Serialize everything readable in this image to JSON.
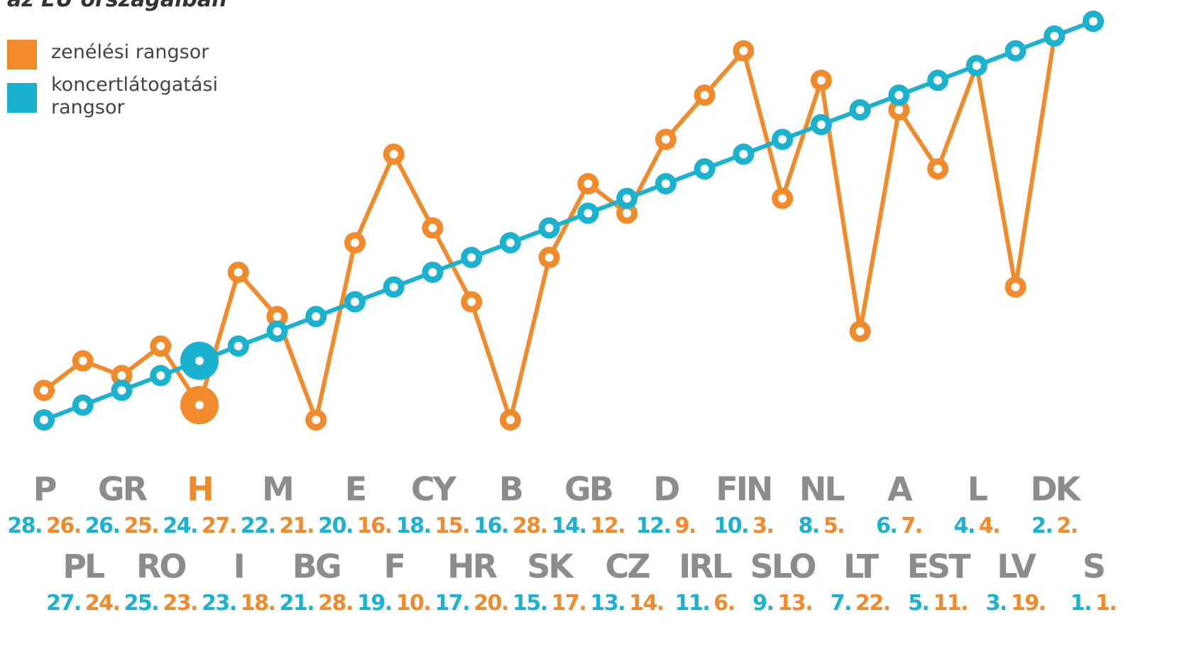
{
  "chart_data": {
    "type": "line",
    "title": "az EU országaiban",
    "categories": [
      "P",
      "PL",
      "GR",
      "RO",
      "H",
      "I",
      "M",
      "BG",
      "E",
      "F",
      "CY",
      "HR",
      "B",
      "SK",
      "GB",
      "CZ",
      "D",
      "IRL",
      "FIN",
      "SLO",
      "NL",
      "LT",
      "A",
      "EST",
      "L",
      "LV",
      "DK",
      "S"
    ],
    "series": [
      {
        "name": "zenélési rangsor",
        "color": "#f18a2b",
        "values": [
          26,
          24,
          25,
          23,
          27,
          18,
          21,
          28,
          16,
          10,
          15,
          20,
          28,
          17,
          12,
          14,
          9,
          6,
          3,
          13,
          5,
          22,
          7,
          11,
          4,
          19,
          2,
          1
        ],
        "value_labels": [
          "26.",
          "24.",
          "25.",
          "23.",
          "27.",
          "18.",
          "21.",
          "28.",
          "16.",
          "10.",
          "15.",
          "20.",
          "28.",
          "17.",
          "12.",
          "14.",
          "9.",
          "6.",
          "3.",
          "13.",
          "5.",
          "22.",
          "7.",
          "11.",
          "4.",
          "19.",
          "2.",
          "1."
        ]
      },
      {
        "name": "koncertlátogatási rangsor",
        "color": "#1ab2cf",
        "values": [
          28,
          27,
          26,
          25,
          24,
          23,
          22,
          21,
          20,
          19,
          18,
          17,
          16,
          15,
          14,
          13,
          12,
          11,
          10,
          9,
          8,
          7,
          6,
          5,
          4,
          3,
          2,
          1
        ],
        "value_labels": [
          "28.",
          "27.",
          "26.",
          "25.",
          "24.",
          "23.",
          "22.",
          "21.",
          "20.",
          "19.",
          "18.",
          "17.",
          "16.",
          "15.",
          "14.",
          "13.",
          "12.",
          "11.",
          "10.",
          "9.",
          "8.",
          "7.",
          "6.",
          "5.",
          "4.",
          "3.",
          "2.",
          "1."
        ]
      }
    ],
    "ylim": [
      28,
      1
    ],
    "highlight_index": 4,
    "category_color": "#8c8c8c"
  }
}
